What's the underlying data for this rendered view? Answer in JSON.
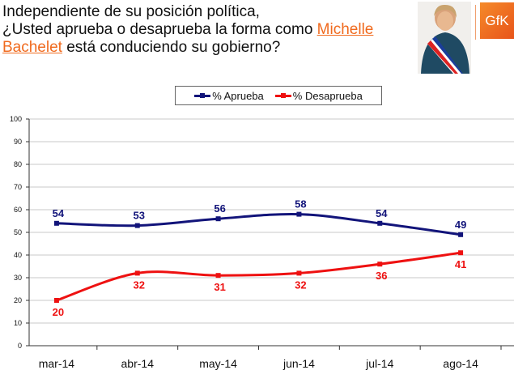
{
  "title": {
    "line1": "Independiente de su posición política,",
    "line2_pre": "¿Usted aprueba o desaprueba la forma como ",
    "name1": "Michelle",
    "name2": "Bachelet",
    "line3_post": " está conduciendo su gobierno?"
  },
  "logo": {
    "text": "GfK"
  },
  "chart_data": {
    "type": "line",
    "categories": [
      "mar-14",
      "abr-14",
      "may-14",
      "jun-14",
      "jul-14",
      "ago-14"
    ],
    "series": [
      {
        "name": "% Aprueba",
        "color": "#12147a",
        "values": [
          54,
          53,
          56,
          58,
          54,
          49
        ]
      },
      {
        "name": "% Desaprueba",
        "color": "#ee1111",
        "values": [
          20,
          32,
          31,
          32,
          36,
          41
        ]
      }
    ],
    "ylim": [
      0,
      100
    ],
    "yticks": [
      "0",
      "10",
      "20",
      "30",
      "40",
      "50",
      "60",
      "70",
      "80",
      "90",
      "100"
    ],
    "grid": true,
    "legend": "top-center"
  }
}
